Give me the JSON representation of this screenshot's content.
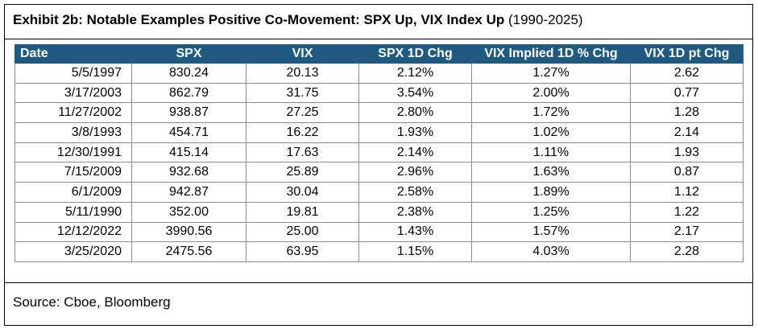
{
  "header": {
    "title": "Exhibit 2b: Notable Examples Positive Co-Movement: SPX Up, VIX Index Up",
    "period": "(1990-2025)"
  },
  "table": {
    "columns": [
      "Date",
      "SPX",
      "VIX",
      "SPX 1D Chg",
      "VIX Implied 1D % Chg",
      "VIX 1D pt Chg"
    ],
    "rows": [
      [
        "5/5/1997",
        "830.24",
        "20.13",
        "2.12%",
        "1.27%",
        "2.62"
      ],
      [
        "3/17/2003",
        "862.79",
        "31.75",
        "3.54%",
        "2.00%",
        "0.77"
      ],
      [
        "11/27/2002",
        "938.87",
        "27.25",
        "2.80%",
        "1.72%",
        "1.28"
      ],
      [
        "3/8/1993",
        "454.71",
        "16.22",
        "1.93%",
        "1.02%",
        "2.14"
      ],
      [
        "12/30/1991",
        "415.14",
        "17.63",
        "2.14%",
        "1.11%",
        "1.93"
      ],
      [
        "7/15/2009",
        "932.68",
        "25.89",
        "2.96%",
        "1.63%",
        "0.87"
      ],
      [
        "6/1/2009",
        "942.87",
        "30.04",
        "2.58%",
        "1.89%",
        "1.12"
      ],
      [
        "5/11/1990",
        "352.00",
        "19.81",
        "2.38%",
        "1.25%",
        "1.22"
      ],
      [
        "12/12/2022",
        "3990.56",
        "25.00",
        "1.43%",
        "1.57%",
        "2.17"
      ],
      [
        "3/25/2020",
        "2475.56",
        "63.95",
        "1.15%",
        "4.03%",
        "2.28"
      ]
    ]
  },
  "footer": {
    "source": "Source: Cboe, Bloomberg"
  }
}
